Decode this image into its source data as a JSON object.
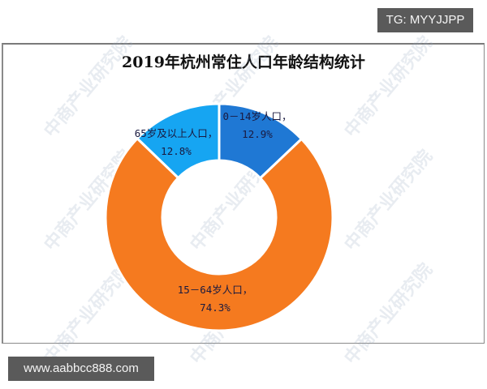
{
  "chart_data": {
    "type": "pie",
    "subtype": "donut",
    "title": "2019年杭州常住人口年龄结构统计",
    "start_angle": "12 o'clock, clockwise",
    "slices": [
      {
        "label": "0－14岁人口",
        "value": 12.9,
        "display": "12.9%",
        "color": "#1F78D4"
      },
      {
        "label": "15－64岁人口",
        "value": 74.3,
        "display": "74.3%",
        "color": "#F57A1F"
      },
      {
        "label": "65岁及以上人口",
        "value": 12.8,
        "display": "12.8%",
        "color": "#16A5F2"
      }
    ],
    "legend": "none (data labels on slices)"
  },
  "labels": {
    "s0_name": "0－14岁人口，",
    "s0_val": "12.9%",
    "s1_name": "15－64岁人口，",
    "s1_val": "74.3%",
    "s2_name": "65岁及以上人口，",
    "s2_val": "12.8%"
  },
  "watermark": "中商产业研究院",
  "overlays": {
    "tg": "TG: MYYJJPP",
    "url": "www.aabbcc888.com"
  },
  "colors": {
    "frame": "#8a8a8a",
    "badge_bg": "#5a5a5a"
  }
}
